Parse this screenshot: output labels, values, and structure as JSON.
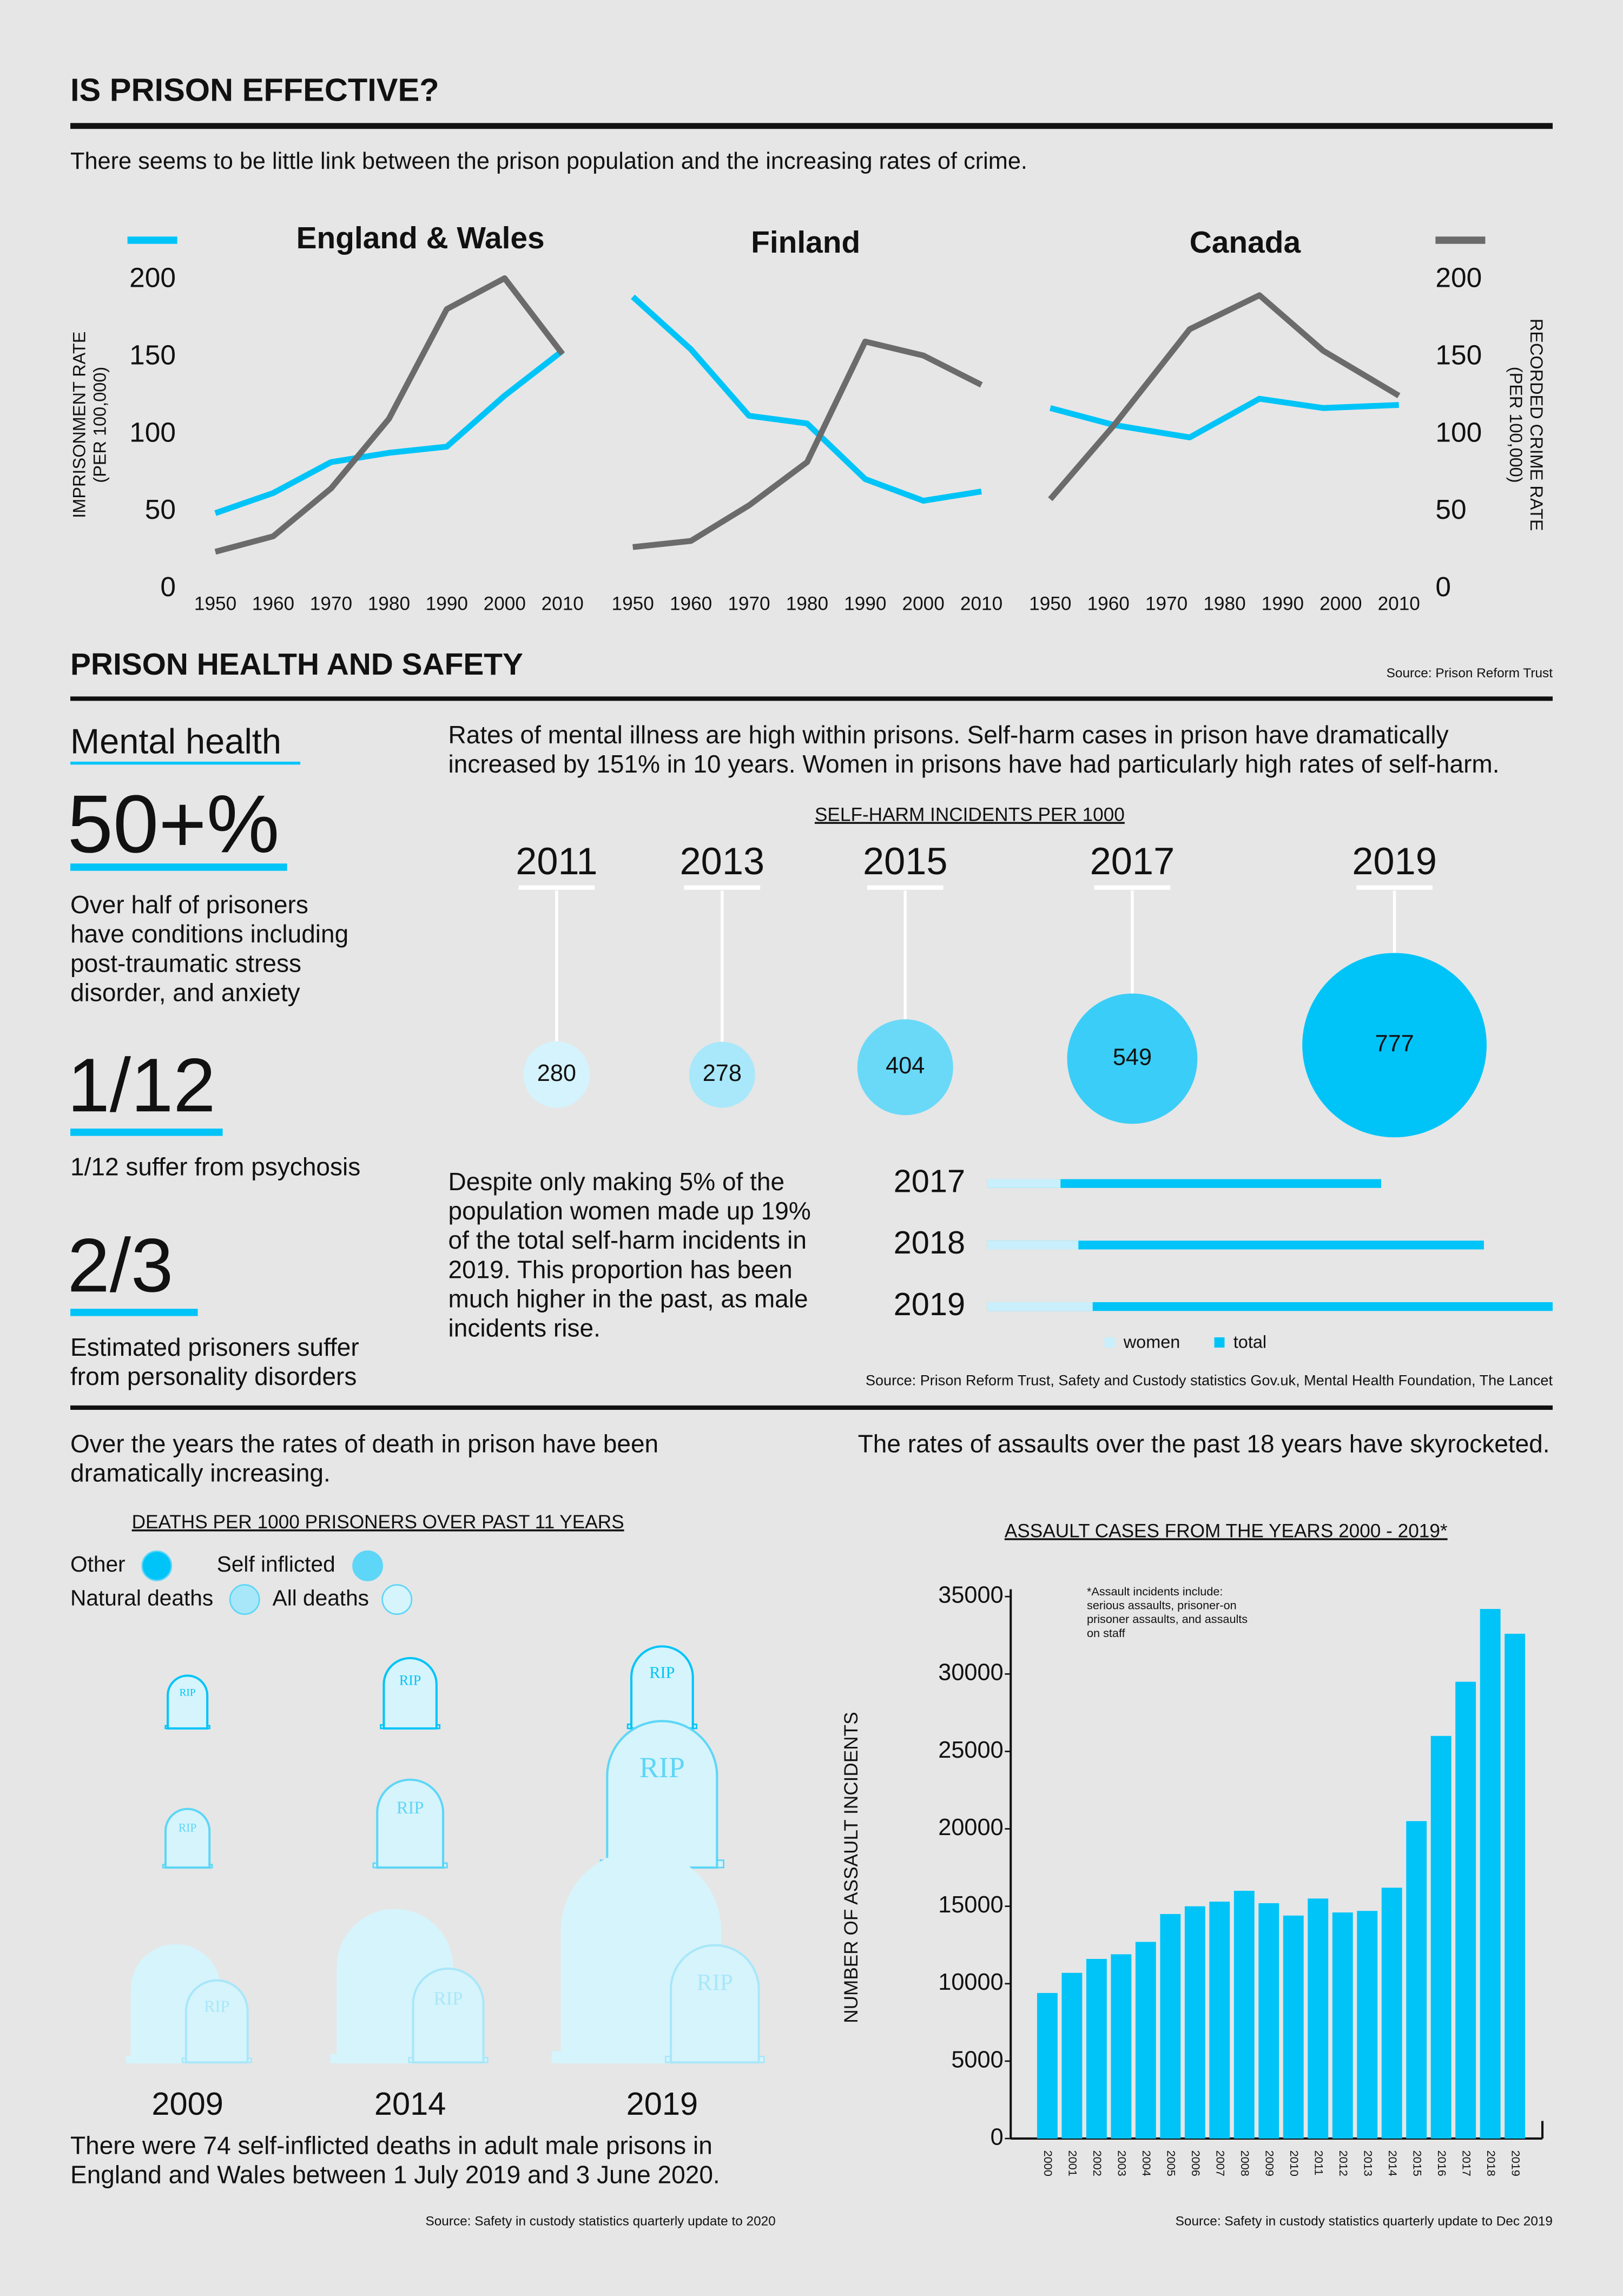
{
  "header": {
    "title": "IS PRISON EFFECTIVE?",
    "subtitle": "There seems to be little link between the prison population and the increasing rates of crime."
  },
  "health": {
    "title": "PRISON HEALTH AND SAFETY",
    "mental_health": "Mental health",
    "stats": [
      {
        "figure": "50+%",
        "lines": [
          "Over half of prisoners",
          "have conditions including",
          "post-traumatic stress",
          "disorder, and anxiety"
        ]
      },
      {
        "figure": "1/12",
        "lines": [
          "1/12 suffer from psychosis"
        ]
      },
      {
        "figure": "2/3",
        "lines": [
          "Estimated prisoners suffer",
          "from personality disorders"
        ]
      }
    ],
    "intro": [
      "Rates of mental illness are high within prisons. Self-harm cases in prison have dramatically",
      "increased by 151% in 10 years. Women in prisons have had particularly high rates of self-harm."
    ],
    "women_note": [
      "Despite only making 5% of the",
      "population women made up 19%",
      "of the total self-harm incidents in",
      "2019. This proportion has been",
      "much higher in the past, as male",
      "incidents rise."
    ],
    "source": "Source: Prison Reform Trust, Safety and Custody statistics Gov.uk, Mental Health Foundation, The Lancet"
  },
  "deaths": {
    "intro": [
      "Over the years the rates of death in prison have been",
      "dramatically increasing."
    ],
    "caption": [
      "There were 74 self-inflicted deaths in adult male prisons in",
      "England and Wales between 1 July 2019 and 3 June 2020."
    ],
    "source": "Source: Safety in custody statistics quarterly update to 2020"
  },
  "assaults": {
    "intro": "The rates of assaults over the past 18 years have skyrocketed.",
    "source": "Source: Safety in custody statistics quarterly update to Dec 2019"
  },
  "chart_data": [
    {
      "type": "line",
      "source": "Source: Prison Reform Trust",
      "ylabel": [
        "IMPRISONMENT RATE",
        "(PER 100,000)"
      ],
      "y2label": [
        "RECORDED CRIME RATE",
        "(PER 100,000)"
      ],
      "ylim": [
        0,
        200
      ],
      "yticks": [
        0,
        50,
        100,
        150,
        200
      ],
      "y2lim": [
        0,
        200
      ],
      "y2ticks": [
        0,
        50,
        100,
        150,
        200
      ],
      "xlim": [
        1950,
        2010
      ],
      "xticks": [
        1950,
        1960,
        1970,
        1980,
        1990,
        2000,
        2010
      ],
      "panels": [
        {
          "title": "England & Wales",
          "series": [
            {
              "color": "#00c4f8",
              "x": [
                1950,
                1960,
                1970,
                1980,
                1990,
                2000,
                2010
              ],
              "values": [
                49,
                62,
                82,
                88,
                92,
                125,
                154
              ]
            },
            {
              "color": "#6b6b6b",
              "axis": "y2",
              "x": [
                1950,
                1960,
                1970,
                1980,
                1990,
                2000,
                2010
              ],
              "values": [
                24,
                34,
                65,
                110,
                181,
                201,
                152
              ]
            }
          ]
        },
        {
          "title": "Finland",
          "series": [
            {
              "color": "#00c4f8",
              "x": [
                1950,
                1960,
                1970,
                1980,
                1990,
                2000,
                2010
              ],
              "values": [
                189,
                155,
                112,
                107,
                71,
                57,
                63
              ]
            },
            {
              "color": "#6b6b6b",
              "axis": "y2",
              "x": [
                1950,
                1960,
                1970,
                1980,
                1990,
                2000,
                2010
              ],
              "values": [
                27,
                31,
                54,
                82,
                160,
                151,
                132
              ]
            }
          ]
        },
        {
          "title": "Canada",
          "series": [
            {
              "color": "#00c4f8",
              "x": [
                1950,
                1961,
                1974,
                1986,
                1997,
                2010
              ],
              "values": [
                117,
                106,
                98,
                123,
                117,
                119
              ]
            },
            {
              "color": "#6b6b6b",
              "axis": "y2",
              "x": [
                1950,
                1961,
                1974,
                1986,
                1997,
                2010
              ],
              "values": [
                58,
                106,
                168,
                190,
                154,
                125
              ]
            }
          ]
        }
      ]
    },
    {
      "type": "bubble",
      "title": "SELF-HARM INCIDENTS PER 1000",
      "categories": [
        "2011",
        "2013",
        "2015",
        "2017",
        "2019"
      ],
      "values": [
        280,
        278,
        404,
        549,
        777
      ],
      "colors": [
        "#d4f3fd",
        "#a8e8fa",
        "#6ad9f8",
        "#3acdf7",
        "#00c4f8"
      ]
    },
    {
      "type": "hbar",
      "categories": [
        "2017",
        "2018",
        "2019"
      ],
      "series": [
        {
          "name": "total",
          "color": "#00c4f8",
          "values": [
            44100,
            55600,
            63300
          ]
        },
        {
          "name": "women",
          "color": "#c8effb",
          "values": [
            8200,
            10200,
            11800
          ]
        }
      ]
    },
    {
      "type": "pictograph",
      "title": "DEATHS PER 1000 PRISONERS OVER PAST 11 YEARS",
      "icon_text": "RIP",
      "categories": [
        "2009",
        "2014",
        "2019"
      ],
      "series": [
        {
          "name": "Other",
          "color": "#00c4f8",
          "values": [
            0.9,
            1.2,
            1.4
          ]
        },
        {
          "name": "Self inflicted",
          "color": "#5dd6f7",
          "values": [
            1.0,
            1.5,
            2.5
          ]
        },
        {
          "name": "Natural deaths",
          "color": "#a8e7f9",
          "values": [
            1.4,
            1.6,
            2.0
          ]
        },
        {
          "name": "All deaths",
          "color": "#d6f4fc",
          "values": [
            2.0,
            2.6,
            3.6
          ]
        }
      ]
    },
    {
      "type": "bar",
      "title": "ASSAULT CASES FROM THE YEARS 2000 - 2019*",
      "ylabel": "NUMBER OF ASSAULT INCIDENTS",
      "annotation": [
        "*Assault incidents include:",
        "serious assaults, prisoner-on",
        "prisoner assaults, and assaults",
        "on staff"
      ],
      "categories": [
        "2000",
        "2001",
        "2002",
        "2003",
        "2004",
        "2005",
        "2006",
        "2007",
        "2008",
        "2009",
        "2010",
        "2011",
        "2012",
        "2013",
        "2014",
        "2015",
        "2016",
        "2017",
        "2018",
        "2019"
      ],
      "values": [
        9400,
        10700,
        11600,
        11900,
        12700,
        14500,
        15000,
        15300,
        16000,
        15200,
        14400,
        15500,
        14600,
        14700,
        16200,
        20500,
        26000,
        29500,
        34200,
        32600
      ],
      "color": "#00c4f8",
      "ylim": [
        0,
        35000
      ],
      "yticks": [
        0,
        5000,
        10000,
        15000,
        20000,
        25000,
        30000,
        35000
      ]
    }
  ]
}
